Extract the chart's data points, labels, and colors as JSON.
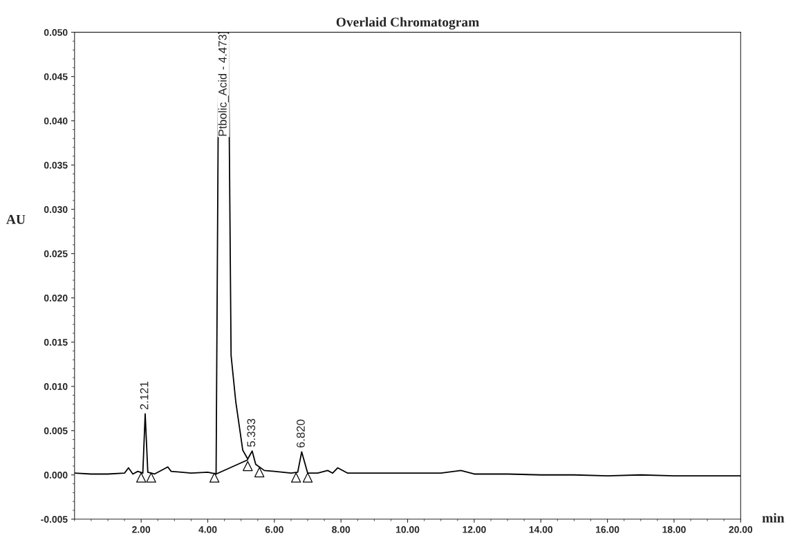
{
  "chart_data": {
    "type": "line",
    "title": "Overlaid Chromatogram",
    "xlabel": "min",
    "ylabel": "AU",
    "series": [
      {
        "color": "#000000",
        "x": [
          0.0,
          0.5,
          1.0,
          1.5,
          1.62,
          1.75,
          1.9,
          2.05,
          2.121,
          2.2,
          2.4,
          2.8,
          2.9,
          3.5,
          4.0,
          4.25,
          4.33,
          4.62,
          4.7,
          4.84,
          5.05,
          5.2,
          5.333,
          5.44,
          5.7,
          6.0,
          6.5,
          6.7,
          6.82,
          7.0,
          7.3,
          7.6,
          7.75,
          7.9,
          8.2,
          9.0,
          10.0,
          11.0,
          11.6,
          12.0,
          13.0,
          14.0,
          15.0,
          16.0,
          17.0,
          18.0,
          19.0,
          20.0
        ],
        "values": [
          0.0002,
          0.0001,
          0.0001,
          0.0002,
          0.0008,
          0.0001,
          0.0004,
          0.0002,
          0.0069,
          0.0003,
          0.0001,
          0.0009,
          0.0004,
          0.0002,
          0.0003,
          0.0001,
          0.05,
          0.05,
          0.0135,
          0.0083,
          0.0028,
          0.0018,
          0.0027,
          0.0012,
          0.0005,
          0.0004,
          0.0002,
          0.0003,
          0.0026,
          0.0002,
          0.0002,
          0.0005,
          0.0002,
          0.0008,
          0.0002,
          0.0002,
          0.0002,
          0.0002,
          0.0005,
          0.0001,
          0.0001,
          0.0,
          0.0,
          -0.0001,
          0.0,
          -0.0001,
          -0.0001,
          -0.0001
        ]
      },
      {
        "type": "line",
        "color": "#000000",
        "x": [
          4.25,
          5.2
        ],
        "values": [
          0.0001,
          0.0017
        ]
      },
      {
        "type": "scatter",
        "color": "#000000",
        "marker": "triangle",
        "x": [
          2.0,
          2.3,
          4.2,
          5.2,
          5.55,
          6.65,
          7.0
        ],
        "values": [
          -0.0003,
          -0.0003,
          -0.0003,
          0.001,
          0.0003,
          -0.0003,
          -0.0003
        ]
      }
    ],
    "annotations": [
      {
        "text": "2.121",
        "x": 2.121,
        "y": 0.0069
      },
      {
        "text": "Ptbolic_Acid - 4.473",
        "x": 4.473,
        "y": 0.05
      },
      {
        "text": "5.333",
        "x": 5.333,
        "y": 0.0027
      },
      {
        "text": "6.820",
        "x": 6.82,
        "y": 0.0026
      }
    ],
    "xlim": [
      0,
      20
    ],
    "ylim": [
      -0.005,
      0.05
    ],
    "xticks": [
      {
        "value": 2,
        "label": "2.00"
      },
      {
        "value": 4,
        "label": "4.00"
      },
      {
        "value": 6,
        "label": "6.00"
      },
      {
        "value": 8,
        "label": "8.00"
      },
      {
        "value": 10,
        "label": "10.00"
      },
      {
        "value": 12,
        "label": "12.00"
      },
      {
        "value": 14,
        "label": "14.00"
      },
      {
        "value": 16,
        "label": "16.00"
      },
      {
        "value": 18,
        "label": "18.00"
      },
      {
        "value": 20,
        "label": "20.00"
      }
    ],
    "yticks": [
      {
        "value": -0.005,
        "label": "-0.005"
      },
      {
        "value": 0,
        "label": "0.000"
      },
      {
        "value": 0.005,
        "label": "0.005"
      },
      {
        "value": 0.01,
        "label": "0.010"
      },
      {
        "value": 0.015,
        "label": "0.015"
      },
      {
        "value": 0.02,
        "label": "0.020"
      },
      {
        "value": 0.025,
        "label": "0.025"
      },
      {
        "value": 0.03,
        "label": "0.030"
      },
      {
        "value": 0.035,
        "label": "0.035"
      },
      {
        "value": 0.04,
        "label": "0.040"
      },
      {
        "value": 0.045,
        "label": "0.045"
      },
      {
        "value": 0.05,
        "label": "0.050"
      }
    ],
    "grid": false,
    "legend": false
  }
}
